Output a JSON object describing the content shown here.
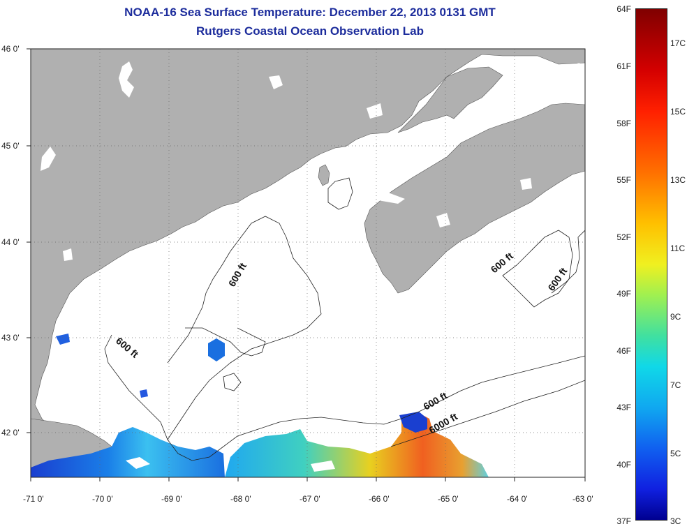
{
  "title_line1": "NOAA-16 Sea Surface Temperature:  December 22, 2013 0131 GMT",
  "title_line2": "Rutgers Coastal Ocean Observation Lab",
  "lat_ticks": [
    {
      "label": "46 0'",
      "value": 46
    },
    {
      "label": "45 0'",
      "value": 45
    },
    {
      "label": "44 0'",
      "value": 44
    },
    {
      "label": "43 0'",
      "value": 43
    },
    {
      "label": "42 0'",
      "value": 42
    }
  ],
  "lon_ticks": [
    {
      "label": "-71 0'",
      "value": -71
    },
    {
      "label": "-70 0'",
      "value": -70
    },
    {
      "label": "-69 0'",
      "value": -69
    },
    {
      "label": "-68 0'",
      "value": -68
    },
    {
      "label": "-67 0'",
      "value": -67
    },
    {
      "label": "-66 0'",
      "value": -66
    },
    {
      "label": "-65 0'",
      "value": -65
    },
    {
      "label": "-64 0'",
      "value": -64
    },
    {
      "label": "-63 0'",
      "value": -63
    }
  ],
  "contour_labels": {
    "a": "600 ft",
    "b": "600 ft",
    "c": "600 ft",
    "d": "600 ft",
    "e": "600 ft",
    "f": "6000 ft"
  },
  "colorbar": {
    "fahrenheit": [
      "64F",
      "61F",
      "58F",
      "55F",
      "52F",
      "49F",
      "46F",
      "43F",
      "40F",
      "37F"
    ],
    "celsius": [
      "17C",
      "15C",
      "13C",
      "11C",
      "9C",
      "7C",
      "5C",
      "3C"
    ]
  },
  "colors": {
    "land": "#b0b0b0",
    "title": "#1c2c9c",
    "no_data": "#ffffff"
  }
}
